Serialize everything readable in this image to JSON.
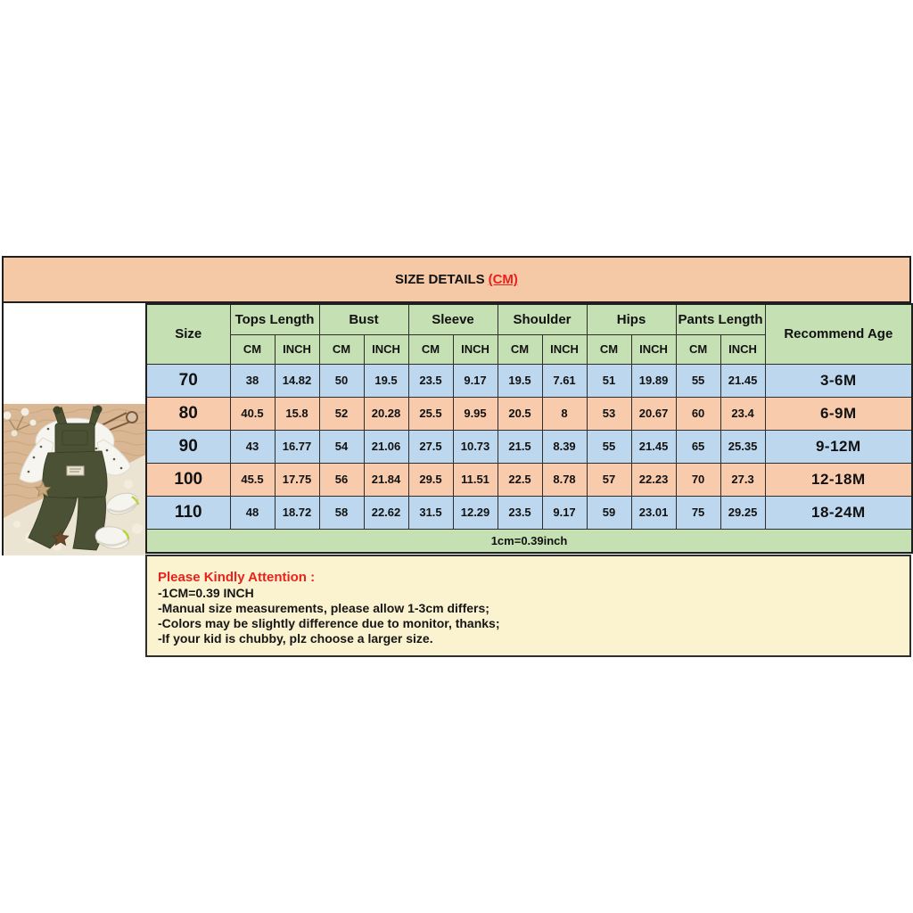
{
  "banner": {
    "title": "SIZE DETAILS",
    "unit": "(CM)"
  },
  "table": {
    "size_header": "Size",
    "group_headers": [
      "Tops Length",
      "Bust",
      "Sleeve",
      "Shoulder",
      "Hips",
      "Pants Length"
    ],
    "sub_headers": [
      "CM",
      "INCH"
    ],
    "age_header": "Recommend Age",
    "rows": [
      {
        "size": "70",
        "values": [
          "38",
          "14.82",
          "50",
          "19.5",
          "23.5",
          "9.17",
          "19.5",
          "7.61",
          "51",
          "19.89",
          "55",
          "21.45"
        ],
        "age": "3-6M"
      },
      {
        "size": "80",
        "values": [
          "40.5",
          "15.8",
          "52",
          "20.28",
          "25.5",
          "9.95",
          "20.5",
          "8",
          "53",
          "20.67",
          "60",
          "23.4"
        ],
        "age": "6-9M"
      },
      {
        "size": "90",
        "values": [
          "43",
          "16.77",
          "54",
          "21.06",
          "27.5",
          "10.73",
          "21.5",
          "8.39",
          "55",
          "21.45",
          "65",
          "25.35"
        ],
        "age": "9-12M"
      },
      {
        "size": "100",
        "values": [
          "45.5",
          "17.75",
          "56",
          "21.84",
          "29.5",
          "11.51",
          "22.5",
          "8.78",
          "57",
          "22.23",
          "70",
          "27.3"
        ],
        "age": "12-18M"
      },
      {
        "size": "110",
        "values": [
          "48",
          "18.72",
          "58",
          "22.62",
          "31.5",
          "12.29",
          "23.5",
          "9.17",
          "59",
          "23.01",
          "75",
          "29.25"
        ],
        "age": "18-24M"
      }
    ],
    "conversion_note": "1cm=0.39inch"
  },
  "notes": {
    "title": "Please Kindly Attention :",
    "lines": [
      "-1CM=0.39 INCH",
      "-Manual size measurements, please allow 1-3cm differs;",
      "-Colors may be slightly difference due to monitor, thanks;",
      "-If your kid is chubby, plz choose a larger size."
    ]
  },
  "colors": {
    "banner_bg": "#f5c9a6",
    "header_green": "#c5e0b3",
    "row_blue": "#bdd7ee",
    "row_peach": "#f8cbad",
    "notes_yellow": "#fbf2cf",
    "accent_red": "#e8221c",
    "border_dark": "#1f1f1f",
    "overalls_green": "#4a5134"
  }
}
